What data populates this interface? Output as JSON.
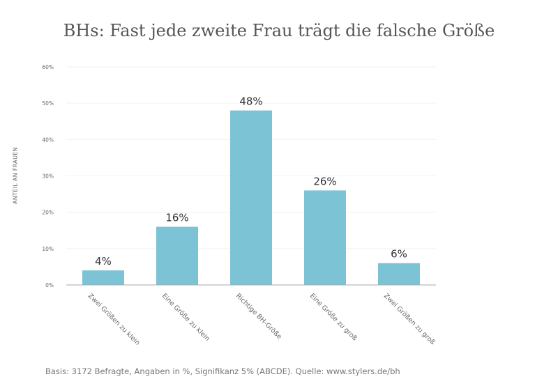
{
  "chart_data": {
    "type": "bar",
    "title": "BHs: Fast jede zweite Frau trägt die falsche Größe",
    "ylabel": "ANTEIL AN FRAUEN",
    "xlabel": "",
    "categories": [
      "Zwei Größen zu klein",
      "Eine Größe zu klein",
      "Richtige BH-Größe",
      "Eine Größe zu groß",
      "Zwei Größen zu groß"
    ],
    "values": [
      4,
      16,
      48,
      26,
      6
    ],
    "data_labels": [
      "4%",
      "16%",
      "48%",
      "26%",
      "6%"
    ],
    "ylim": [
      0,
      60
    ],
    "yticks": [
      "0%",
      "10%",
      "20%",
      "30%",
      "40%",
      "50%",
      "60%"
    ],
    "grid": true,
    "bar_color": "#7cc3d6",
    "footnote": "Basis: 3172 Befragte, Angaben in %, Signifikanz 5% (ABCDE). Quelle: www.stylers.de/bh"
  }
}
